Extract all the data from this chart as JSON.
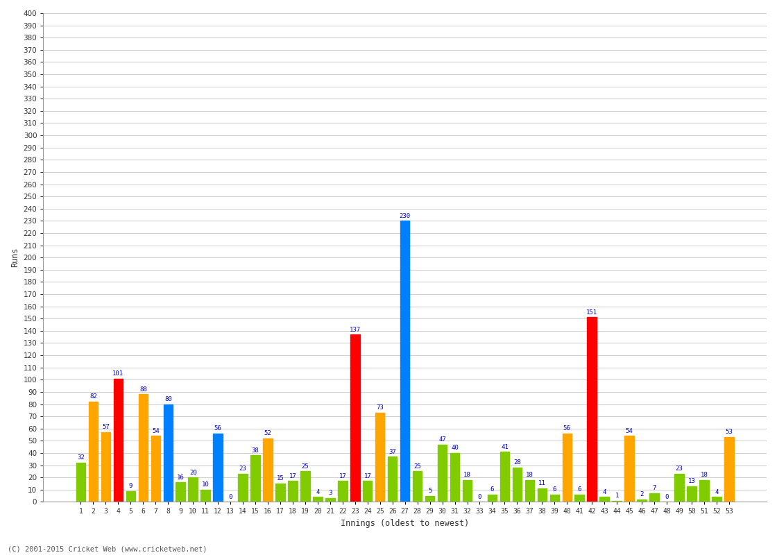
{
  "innings": [
    1,
    2,
    3,
    4,
    5,
    6,
    7,
    8,
    9,
    10,
    11,
    12,
    13,
    14,
    15,
    16,
    17,
    18,
    19,
    20,
    21,
    22,
    23,
    24,
    25,
    26,
    27,
    28,
    29,
    30,
    31,
    32,
    33,
    34,
    35,
    36,
    37,
    38,
    39,
    40,
    41,
    42,
    43,
    44,
    45,
    46,
    47,
    48,
    49,
    50,
    51,
    52,
    53
  ],
  "values": [
    32,
    82,
    57,
    101,
    9,
    88,
    54,
    80,
    16,
    20,
    10,
    56,
    0,
    23,
    38,
    52,
    15,
    17,
    25,
    4,
    3,
    17,
    137,
    17,
    73,
    37,
    230,
    25,
    5,
    47,
    40,
    18,
    0,
    6,
    41,
    28,
    18,
    11,
    6,
    56,
    6,
    151,
    4,
    1,
    54,
    2,
    7,
    0,
    23,
    13,
    18,
    4,
    53
  ],
  "colors": [
    "#80cc00",
    "#ffa500",
    "#ffa500",
    "#ff0000",
    "#80cc00",
    "#ffa500",
    "#ffa500",
    "#0080ff",
    "#80cc00",
    "#80cc00",
    "#80cc00",
    "#0080ff",
    "#80cc00",
    "#80cc00",
    "#80cc00",
    "#ffa500",
    "#80cc00",
    "#80cc00",
    "#80cc00",
    "#80cc00",
    "#80cc00",
    "#80cc00",
    "#ff0000",
    "#80cc00",
    "#ffa500",
    "#80cc00",
    "#0080ff",
    "#80cc00",
    "#80cc00",
    "#80cc00",
    "#80cc00",
    "#80cc00",
    "#80cc00",
    "#80cc00",
    "#80cc00",
    "#80cc00",
    "#80cc00",
    "#80cc00",
    "#80cc00",
    "#ffa500",
    "#80cc00",
    "#ff0000",
    "#80cc00",
    "#80cc00",
    "#ffa500",
    "#80cc00",
    "#80cc00",
    "#80cc00",
    "#80cc00",
    "#80cc00",
    "#80cc00",
    "#80cc00",
    "#ffa500"
  ],
  "ylabel": "Runs",
  "xlabel": "Innings (oldest to newest)",
  "ylim": [
    0,
    400
  ],
  "yticks": [
    0,
    10,
    20,
    30,
    40,
    50,
    60,
    70,
    80,
    90,
    100,
    110,
    120,
    130,
    140,
    150,
    160,
    170,
    180,
    190,
    200,
    210,
    220,
    230,
    240,
    250,
    260,
    270,
    280,
    290,
    300,
    310,
    320,
    330,
    340,
    350,
    360,
    370,
    380,
    390,
    400
  ],
  "bg_color": "#ffffff",
  "grid_color": "#d0d0d0",
  "label_color": "#0000cc",
  "footer": "(C) 2001-2015 Cricket Web (www.cricketweb.net)"
}
